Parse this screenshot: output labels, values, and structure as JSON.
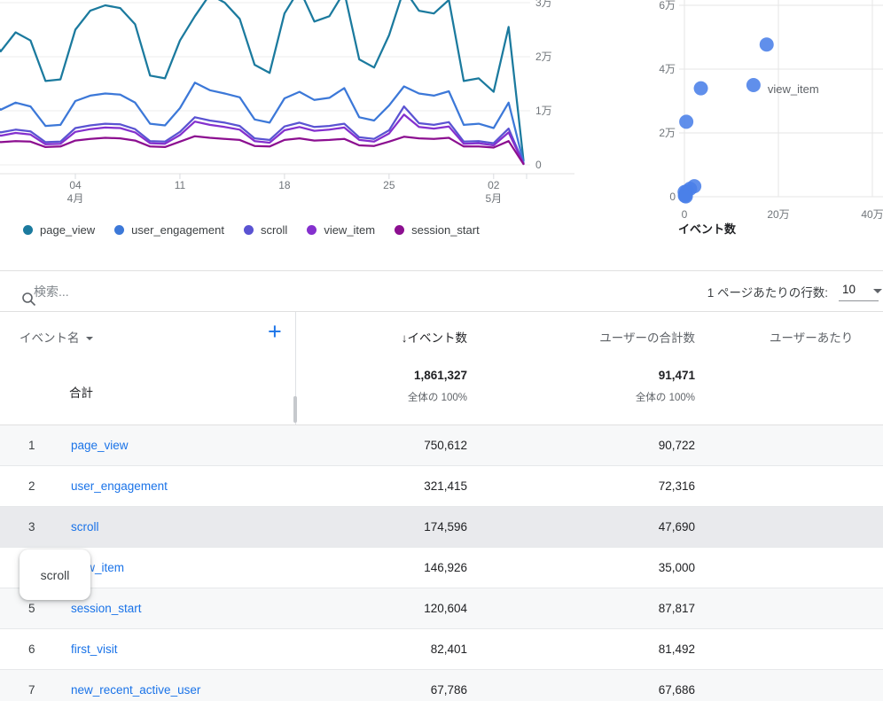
{
  "chart_data": [
    {
      "type": "line",
      "legend_position": "bottom",
      "ylim": [
        0,
        30000
      ],
      "dates": [
        "3/29",
        "3/30",
        "3/31",
        "4/1",
        "4/2",
        "4/3",
        "4/4",
        "4/5",
        "4/6",
        "4/7",
        "4/8",
        "4/9",
        "4/10",
        "4/11",
        "4/12",
        "4/13",
        "4/14",
        "4/15",
        "4/16",
        "4/17",
        "4/18",
        "4/19",
        "4/20",
        "4/21",
        "4/22",
        "4/23",
        "4/24",
        "4/25",
        "4/26",
        "4/27",
        "4/28",
        "4/29",
        "4/30",
        "5/1",
        "5/2",
        "5/3",
        "5/4"
      ],
      "series": [
        {
          "name": "page_view",
          "color": "#1b7a9e",
          "values": [
            25000,
            21000,
            24500,
            23000,
            15500,
            15800,
            25000,
            28500,
            29500,
            29000,
            26000,
            16500,
            16000,
            23000,
            27500,
            31500,
            30000,
            27000,
            18500,
            17000,
            28000,
            32500,
            26500,
            27500,
            32000,
            19500,
            18000,
            24000,
            32500,
            28500,
            28000,
            30500,
            15500,
            16000,
            13500,
            25500,
            800
          ]
        },
        {
          "name": "user_engagement",
          "color": "#3c78d8",
          "values": [
            12500,
            10200,
            11500,
            10800,
            7200,
            7400,
            11800,
            12800,
            13200,
            13000,
            11500,
            7600,
            7300,
            10500,
            15200,
            13800,
            13200,
            12500,
            8400,
            7800,
            12300,
            13500,
            12000,
            12400,
            14200,
            8800,
            8200,
            11000,
            14500,
            13200,
            12800,
            13600,
            7400,
            7600,
            6800,
            11500,
            400
          ]
        },
        {
          "name": "scroll",
          "color": "#5a53d2",
          "values": [
            7200,
            6000,
            6500,
            6200,
            4200,
            4300,
            6800,
            7300,
            7600,
            7500,
            6600,
            4400,
            4300,
            6100,
            8800,
            8200,
            7800,
            7200,
            4900,
            4600,
            7100,
            7800,
            7000,
            7200,
            7600,
            5100,
            4800,
            6400,
            10800,
            7700,
            7400,
            7900,
            4300,
            4400,
            4000,
            6700,
            250
          ]
        },
        {
          "name": "view_item",
          "color": "#8430ce",
          "values": [
            6500,
            5400,
            5900,
            5600,
            3800,
            3900,
            6100,
            6600,
            6900,
            6800,
            6000,
            4000,
            3900,
            5500,
            8000,
            7400,
            7000,
            6500,
            4400,
            4100,
            6400,
            7000,
            6300,
            6500,
            6900,
            4600,
            4300,
            5800,
            9300,
            7000,
            6700,
            7100,
            3900,
            4000,
            3600,
            6000,
            200
          ]
        },
        {
          "name": "session_start",
          "color": "#8c0f90",
          "values": [
            4600,
            4200,
            4400,
            4300,
            3300,
            3400,
            4500,
            4800,
            5000,
            4900,
            4500,
            3400,
            3300,
            4300,
            5300,
            5000,
            4800,
            4600,
            3500,
            3400,
            4600,
            4900,
            4500,
            4600,
            4800,
            3600,
            3500,
            4300,
            5200,
            4900,
            4800,
            5000,
            3400,
            3400,
            3200,
            4400,
            150
          ]
        }
      ],
      "y_ticks": [
        {
          "label": "0",
          "v": 0
        },
        {
          "label": "1万",
          "v": 10000
        },
        {
          "label": "2万",
          "v": 20000
        },
        {
          "label": "3万",
          "v": 30000
        }
      ],
      "x_ticks": [
        {
          "label": "04",
          "sub": "4月",
          "i": 6
        },
        {
          "label": "11",
          "i": 13
        },
        {
          "label": "18",
          "i": 20
        },
        {
          "label": "25",
          "i": 27
        },
        {
          "label": "02",
          "sub": "5月",
          "i": 34
        }
      ]
    },
    {
      "type": "scatter",
      "xlabel": "イベント数",
      "point_color": "#4a7fe8",
      "x_ticks": [
        {
          "label": "0",
          "v": 0
        },
        {
          "label": "20万",
          "v": 200000
        },
        {
          "label": "40万",
          "v": 400000
        }
      ],
      "y_ticks": [
        {
          "label": "0",
          "v": 0
        },
        {
          "label": "2万",
          "v": 20000
        },
        {
          "label": "4万",
          "v": 40000
        },
        {
          "label": "6万",
          "v": 60000
        }
      ],
      "points": [
        {
          "x": 175000,
          "y": 47700
        },
        {
          "x": 147000,
          "y": 35000,
          "label": "view_item"
        },
        {
          "x": 35000,
          "y": 34000
        },
        {
          "x": 4000,
          "y": 23500
        },
        {
          "x": 21000,
          "y": 3300
        },
        {
          "x": 12000,
          "y": 2500
        },
        {
          "x": 5000,
          "y": 1700
        },
        {
          "x": 2000,
          "y": 700
        },
        {
          "x": 1000,
          "y": 300
        },
        {
          "x": 500,
          "y": 1500
        },
        {
          "x": 3000,
          "y": 100
        }
      ]
    }
  ],
  "table": {
    "search_placeholder": "検索...",
    "rows_per_page_label": "1 ページあたりの行数:",
    "rows_per_page_value": "10",
    "col_event_name": "イベント名",
    "sort_arrow": "↓",
    "col_event_count": "イベント数",
    "col_total_users": "ユーザーの合計数",
    "col_per_user": "ユーザーあたり",
    "add_button": "+",
    "totals_label": "合計",
    "totals_event_count": "1,861,327",
    "totals_event_count_sub": "全体の 100%",
    "totals_total_users": "91,471",
    "totals_total_users_sub": "全体の 100%",
    "rows": [
      {
        "n": "1",
        "name": "page_view",
        "events": "750,612",
        "users": "90,722"
      },
      {
        "n": "2",
        "name": "user_engagement",
        "events": "321,415",
        "users": "72,316"
      },
      {
        "n": "3",
        "name": "scroll",
        "events": "174,596",
        "users": "47,690",
        "highlighted": true
      },
      {
        "n": "4",
        "name": "view_item",
        "events": "146,926",
        "users": "35,000"
      },
      {
        "n": "5",
        "name": "session_start",
        "events": "120,604",
        "users": "87,817"
      },
      {
        "n": "6",
        "name": "first_visit",
        "events": "82,401",
        "users": "81,492"
      },
      {
        "n": "7",
        "name": "new_recent_active_user",
        "events": "67,786",
        "users": "67,686"
      }
    ],
    "tooltip": "scroll"
  }
}
